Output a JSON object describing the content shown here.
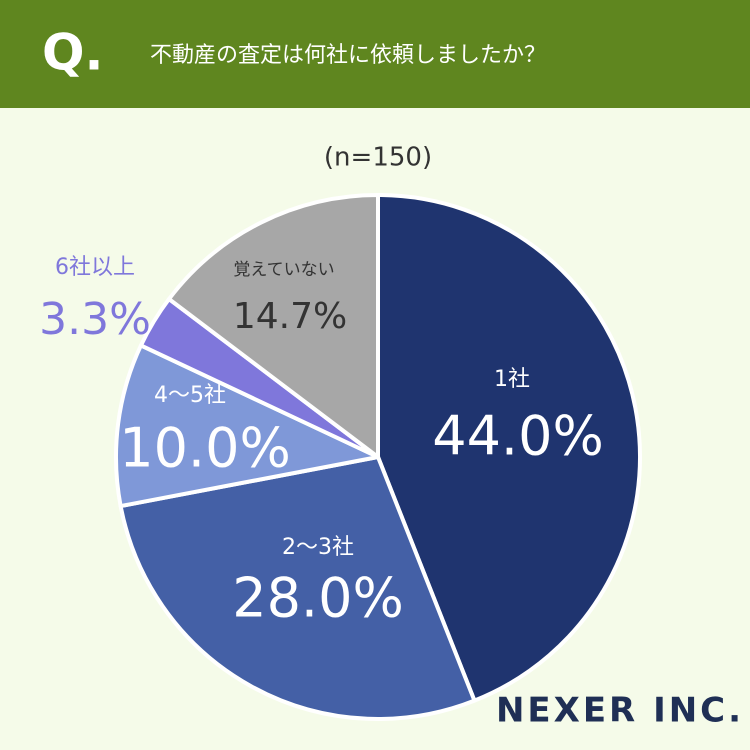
{
  "header": {
    "mark": "Q.",
    "question": "不動産の査定は何社に依頼しましたか？"
  },
  "chart_data": {
    "type": "pie",
    "subtitle": "(n=150)",
    "categories": [
      "1社",
      "2〜3社",
      "4〜5社",
      "6社以上",
      "覚えていない"
    ],
    "values": [
      44.0,
      28.0,
      10.0,
      3.3,
      14.7
    ],
    "value_labels": [
      "44.0%",
      "28.0%",
      "10.0%",
      "3.3%",
      "14.7%"
    ],
    "colors": [
      "#1f346f",
      "#4460a6",
      "#7f98d8",
      "#7f77db",
      "#a7a7a7"
    ]
  },
  "footer": {
    "brand": "NEXER INC."
  }
}
